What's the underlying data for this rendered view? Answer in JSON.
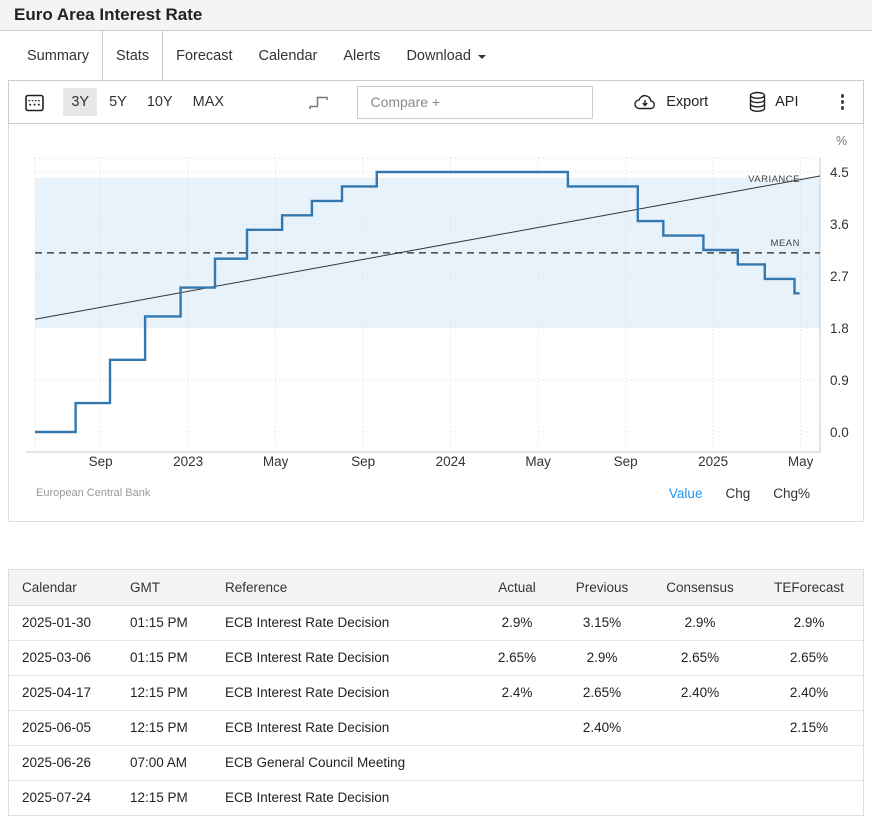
{
  "page": {
    "title": "Euro Area Interest Rate"
  },
  "tabs": [
    {
      "label": "Summary",
      "active": false
    },
    {
      "label": "Stats",
      "active": true
    },
    {
      "label": "Forecast",
      "active": false
    },
    {
      "label": "Calendar",
      "active": false
    },
    {
      "label": "Alerts",
      "active": false
    },
    {
      "label": "Download",
      "active": false,
      "caret": true
    }
  ],
  "toolbar": {
    "ranges": [
      {
        "label": "3Y",
        "active": true
      },
      {
        "label": "5Y",
        "active": false
      },
      {
        "label": "10Y",
        "active": false
      },
      {
        "label": "MAX",
        "active": false
      }
    ],
    "compare_placeholder": "Compare +",
    "export_label": "Export",
    "api_label": "API",
    "icons": [
      "calendar-icon",
      "step-chart-icon",
      "cloud-download-icon",
      "database-icon",
      "kebab-menu-icon"
    ]
  },
  "chart_data": {
    "type": "line",
    "style": "step",
    "title": "Euro Area Interest Rate",
    "unit": "%",
    "grid": true,
    "legend_position": "none",
    "x_domain": [
      "2022-06-01",
      "2025-05-28"
    ],
    "x_ticks": [
      {
        "date": "2022-09-01",
        "label": "Sep"
      },
      {
        "date": "2023-01-01",
        "label": "2023"
      },
      {
        "date": "2023-05-01",
        "label": "May"
      },
      {
        "date": "2023-09-01",
        "label": "Sep"
      },
      {
        "date": "2024-01-01",
        "label": "2024"
      },
      {
        "date": "2024-05-01",
        "label": "May"
      },
      {
        "date": "2024-09-01",
        "label": "Sep"
      },
      {
        "date": "2025-01-01",
        "label": "2025"
      },
      {
        "date": "2025-05-01",
        "label": "May"
      }
    ],
    "y_ticks": [
      "0.0",
      "0.9",
      "1.8",
      "2.7",
      "3.6",
      "4.5"
    ],
    "ylim": [
      0,
      4.7
    ],
    "series": [
      {
        "name": "Euro Area Interest Rate",
        "color": "#3477af",
        "points": [
          [
            "2022-06-01",
            0.0
          ],
          [
            "2022-07-27",
            0.5
          ],
          [
            "2022-09-14",
            1.25
          ],
          [
            "2022-11-02",
            2.0
          ],
          [
            "2022-12-21",
            2.5
          ],
          [
            "2023-02-08",
            3.0
          ],
          [
            "2023-03-22",
            3.5
          ],
          [
            "2023-05-10",
            3.75
          ],
          [
            "2023-06-21",
            4.0
          ],
          [
            "2023-08-02",
            4.25
          ],
          [
            "2023-09-20",
            4.5
          ],
          [
            "2024-06-12",
            4.25
          ],
          [
            "2024-09-18",
            3.65
          ],
          [
            "2024-10-23",
            3.4
          ],
          [
            "2024-12-18",
            3.15
          ],
          [
            "2025-02-05",
            2.9
          ],
          [
            "2025-03-12",
            2.65
          ],
          [
            "2025-04-23",
            2.4
          ],
          [
            "2025-04-30",
            2.4
          ]
        ]
      }
    ],
    "overlays": {
      "mean": {
        "value": 3.1,
        "label": "MEAN"
      },
      "variance_band": {
        "from": 1.8,
        "to": 4.4,
        "color": "#e7f2fa",
        "label": "VARIANCE"
      },
      "trend": {
        "start": [
          "2022-06-01",
          1.95
        ],
        "end": [
          "2025-05-28",
          4.43
        ]
      }
    }
  },
  "chart_footer": {
    "source": "European Central Bank",
    "links": [
      {
        "label": "Value",
        "active": true
      },
      {
        "label": "Chg",
        "active": false
      },
      {
        "label": "Chg%",
        "active": false
      }
    ]
  },
  "table": {
    "headers": [
      "Calendar",
      "GMT",
      "Reference",
      "Actual",
      "Previous",
      "Consensus",
      "TEForecast"
    ],
    "rows": [
      [
        "2025-01-30",
        "01:15 PM",
        "ECB Interest Rate Decision",
        "2.9%",
        "3.15%",
        "2.9%",
        "2.9%"
      ],
      [
        "2025-03-06",
        "01:15 PM",
        "ECB Interest Rate Decision",
        "2.65%",
        "2.9%",
        "2.65%",
        "2.65%"
      ],
      [
        "2025-04-17",
        "12:15 PM",
        "ECB Interest Rate Decision",
        "2.4%",
        "2.65%",
        "2.40%",
        "2.40%"
      ],
      [
        "2025-06-05",
        "12:15 PM",
        "ECB Interest Rate Decision",
        "",
        "2.40%",
        "",
        "2.15%"
      ],
      [
        "2025-06-26",
        "07:00 AM",
        "ECB General Council Meeting",
        "",
        "",
        "",
        ""
      ],
      [
        "2025-07-24",
        "12:15 PM",
        "ECB Interest Rate Decision",
        "",
        "",
        "",
        ""
      ]
    ]
  },
  "colors": {
    "line_blue": "#3477af",
    "band_blue": "#e7f2fa",
    "link_blue": "#2196f3"
  }
}
